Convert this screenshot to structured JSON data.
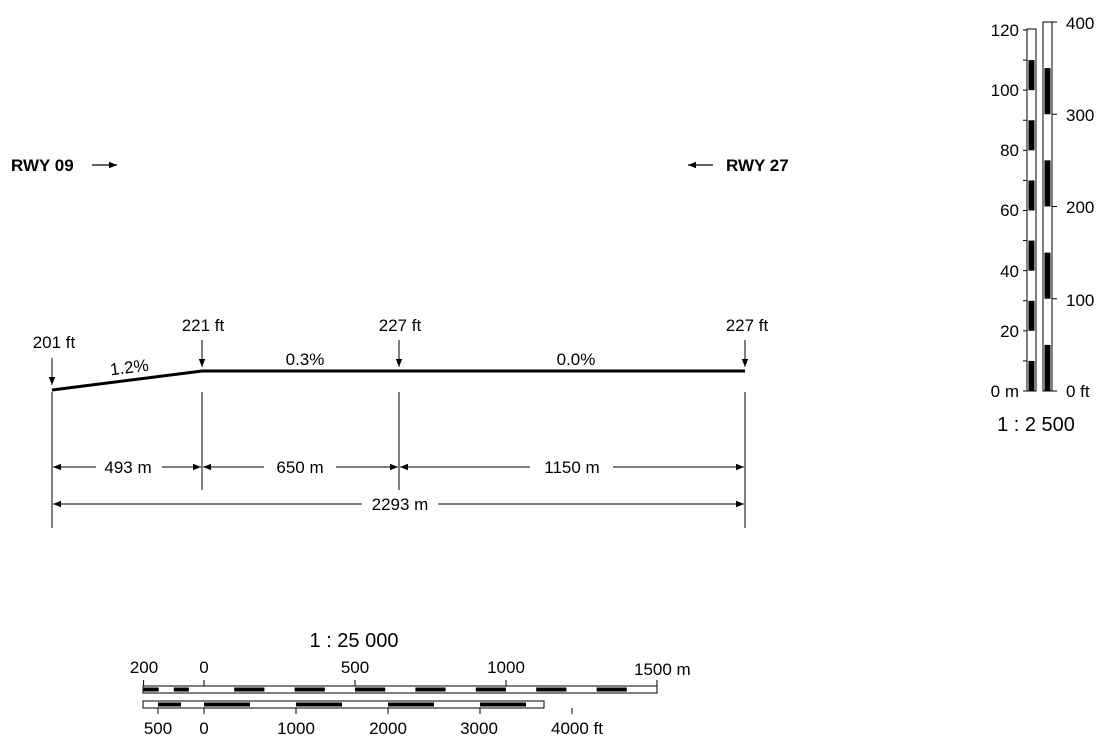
{
  "runway_labels": {
    "left": "RWY 09",
    "right": "RWY 27"
  },
  "profile": {
    "elevations": [
      {
        "label": "201 ft",
        "distance_m": 0,
        "elevation_ft": 201
      },
      {
        "label": "221 ft",
        "distance_m": 493,
        "elevation_ft": 221
      },
      {
        "label": "227 ft",
        "distance_m": 1143,
        "elevation_ft": 227
      },
      {
        "label": "227 ft",
        "distance_m": 2293,
        "elevation_ft": 227
      }
    ],
    "slopes": [
      "1.2%",
      "0.3%",
      "0.0%"
    ],
    "segments": [
      "493 m",
      "650 m",
      "1150 m"
    ],
    "total": "2293 m"
  },
  "vertical_scale": {
    "ratio": "1 : 2 500",
    "meter_labels": [
      "0 m",
      "20",
      "40",
      "60",
      "80",
      "100",
      "120"
    ],
    "feet_labels": [
      "0 ft",
      "100",
      "200",
      "300",
      "400"
    ]
  },
  "horizontal_scale": {
    "ratio": "1 : 25 000",
    "meter_labels": [
      "200",
      "0",
      "500",
      "1000",
      "1500 m"
    ],
    "feet_labels": [
      "500",
      "0",
      "1000",
      "2000",
      "3000",
      "4000 ft"
    ]
  },
  "colors": {
    "ink": "#000000",
    "background": "#ffffff"
  }
}
